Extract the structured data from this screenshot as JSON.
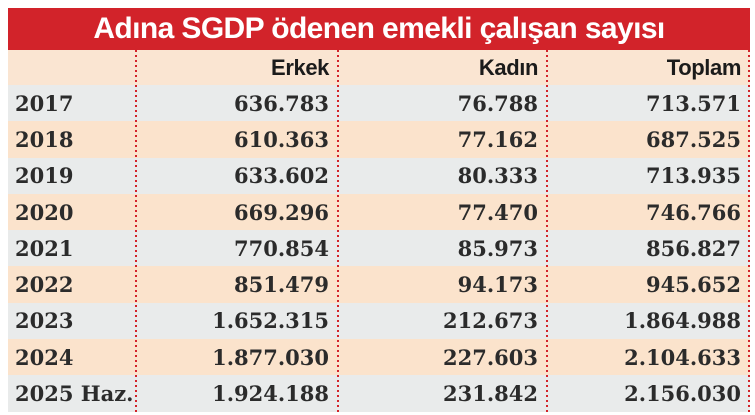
{
  "title": "Adına SGDP ödenen emekli çalışan sayısı",
  "colors": {
    "title_bar_red": "#d2232a",
    "separator_red": "#d2232a",
    "row_peach": "#fbe3cc",
    "row_grey": "#e9ebeb",
    "header_peach": "#fae5d2",
    "title_text": "#ffffff",
    "body_text": "#2b2b2b"
  },
  "chart_data": {
    "type": "table",
    "title": "Adına SGDP ödenen emekli çalışan sayısı",
    "columns": [
      "Erkek",
      "Kadın",
      "Toplam"
    ],
    "row_labels": [
      "2017",
      "2018",
      "2019",
      "2020",
      "2021",
      "2022",
      "2023",
      "2024",
      "2025 Haz."
    ],
    "rows": [
      [
        "2017",
        "636.783",
        "76.788",
        "713.571"
      ],
      [
        "2018",
        "610.363",
        "77.162",
        "687.525"
      ],
      [
        "2019",
        "633.602",
        "80.333",
        "713.935"
      ],
      [
        "2020",
        "669.296",
        "77.470",
        "746.766"
      ],
      [
        "2021",
        "770.854",
        "85.973",
        "856.827"
      ],
      [
        "2022",
        "851.479",
        "94.173",
        "945.652"
      ],
      [
        "2023",
        "1.652.315",
        "212.673",
        "1.864.988"
      ],
      [
        "2024",
        "1.877.030",
        "227.603",
        "2.104.633"
      ],
      [
        "2025 Haz.",
        "1.924.188",
        "231.842",
        "2.156.030"
      ]
    ],
    "layout": {
      "striped": true,
      "column_separators": "dotted-red-vertical",
      "value_alignment": "right"
    }
  }
}
